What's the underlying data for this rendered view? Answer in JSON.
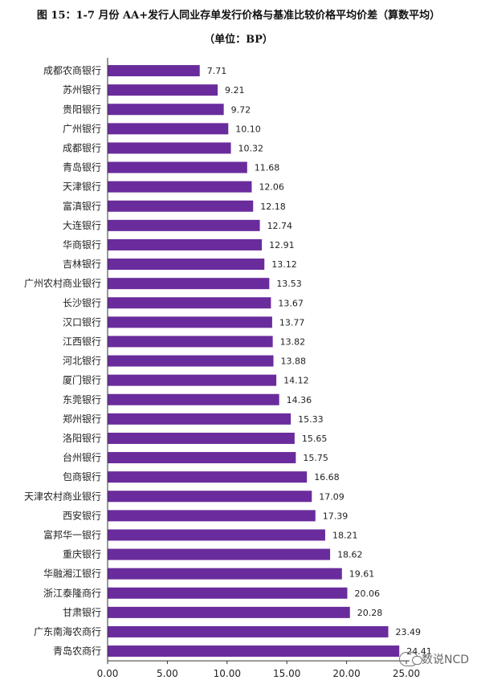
{
  "header": {
    "title": "图 15：1-7 月份 AA+发行人同业存单发行价格与基准比较价格平均价差（算数平均）",
    "subtitle": "（单位：BP）"
  },
  "watermark": {
    "text": "数说NCD",
    "icon": "wechat-icon"
  },
  "colors": {
    "bar": "#6a2c9c",
    "axis": "#333333"
  },
  "chart_data": {
    "type": "bar",
    "orientation": "horizontal",
    "title": "图 15：1-7 月份 AA+发行人同业存单发行价格与基准比较价格平均价差（算数平均）",
    "subtitle": "（单位：BP）",
    "categories": [
      "成都农商银行",
      "苏州银行",
      "贵阳银行",
      "广州银行",
      "成都银行",
      "青岛银行",
      "天津银行",
      "富滇银行",
      "大连银行",
      "华商银行",
      "吉林银行",
      "广州农村商业银行",
      "长沙银行",
      "汉口银行",
      "江西银行",
      "河北银行",
      "厦门银行",
      "东莞银行",
      "郑州银行",
      "洛阳银行",
      "台州银行",
      "包商银行",
      "天津农村商业银行",
      "西安银行",
      "富邦华一银行",
      "重庆银行",
      "华融湘江银行",
      "浙江泰隆商行",
      "甘肃银行",
      "广东南海农商行",
      "青岛农商行"
    ],
    "values": [
      7.71,
      9.21,
      9.72,
      10.1,
      10.32,
      11.68,
      12.06,
      12.18,
      12.74,
      12.91,
      13.12,
      13.53,
      13.67,
      13.77,
      13.82,
      13.88,
      14.12,
      14.36,
      15.33,
      15.65,
      15.75,
      16.68,
      17.09,
      17.39,
      18.21,
      18.62,
      19.61,
      20.06,
      20.28,
      23.49,
      24.41
    ],
    "value_labels": [
      "7.71",
      "9.21",
      "9.72",
      "10.10",
      "10.32",
      "11.68",
      "12.06",
      "12.18",
      "12.74",
      "12.91",
      "13.12",
      "13.53",
      "13.67",
      "13.77",
      "13.82",
      "13.88",
      "14.12",
      "14.36",
      "15.33",
      "15.65",
      "15.75",
      "16.68",
      "17.09",
      "17.39",
      "18.21",
      "18.62",
      "19.61",
      "20.06",
      "20.28",
      "23.49",
      "24.41"
    ],
    "xlim": [
      0,
      25
    ],
    "xticks": [
      "0.00",
      "5.00",
      "10.00",
      "15.00",
      "20.00",
      "25.00"
    ],
    "grid": false,
    "legend": "none"
  }
}
